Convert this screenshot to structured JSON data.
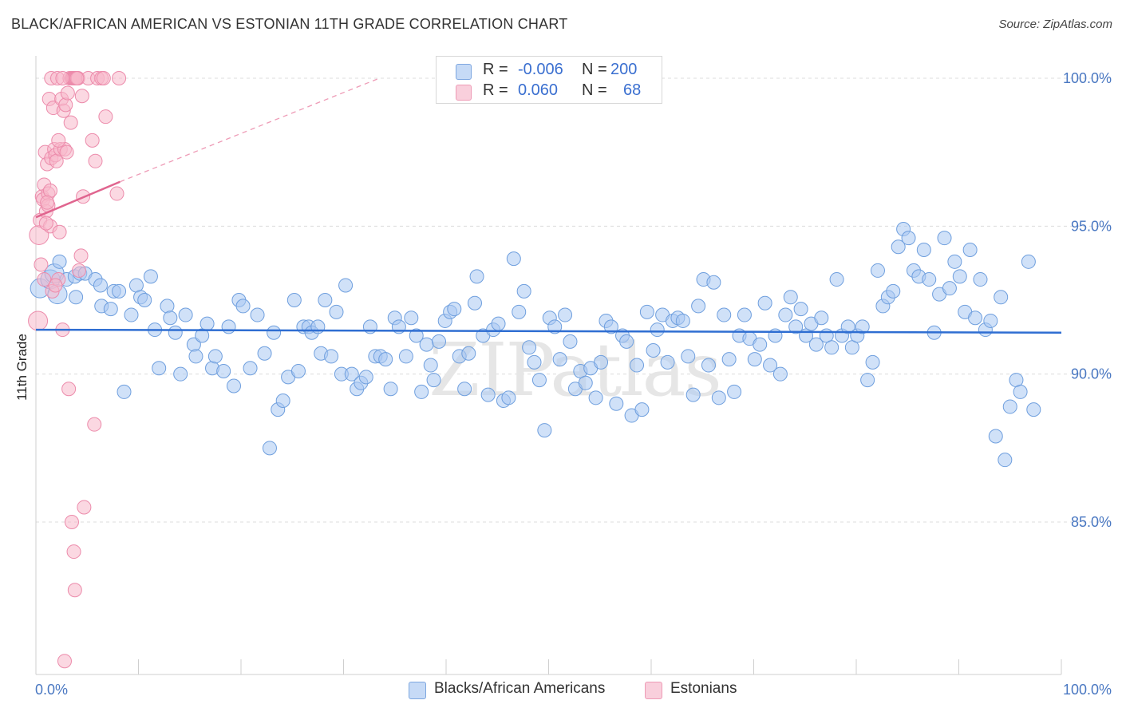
{
  "header": {
    "title": "BLACK/AFRICAN AMERICAN VS ESTONIAN 11TH GRADE CORRELATION CHART",
    "source": "Source: ZipAtlas.com"
  },
  "legend": {
    "rows": [
      {
        "r_label": "R =",
        "r_value": "-0.006",
        "n_label": "N =",
        "n_value": "200",
        "color": "#a9c8f2"
      },
      {
        "r_label": "R =",
        "r_value": "0.060",
        "n_label": "N =",
        "n_value": "68",
        "color": "#f7b8cb"
      }
    ]
  },
  "bottom_legend": [
    {
      "label": "Blacks/African Americans",
      "color": "#a9c8f2"
    },
    {
      "label": "Estonians",
      "color": "#f7b8cb"
    }
  ],
  "watermark": "ZIPatlas",
  "chart_data": {
    "type": "scatter",
    "title": "BLACK/AFRICAN AMERICAN VS ESTONIAN 11TH GRADE CORRELATION CHART",
    "xlabel": "",
    "ylabel": "11th Grade",
    "xlim": [
      0,
      100
    ],
    "ylim": [
      80,
      100.5
    ],
    "y_ticks": [
      {
        "value": 85,
        "label": "85.0%"
      },
      {
        "value": 90,
        "label": "90.0%"
      },
      {
        "value": 95,
        "label": "95.0%"
      },
      {
        "value": 100,
        "label": "100.0%"
      }
    ],
    "x_ticks": [
      {
        "value": 0,
        "label": "0.0%"
      },
      {
        "value": 100,
        "label": "100.0%"
      }
    ],
    "grid": true,
    "legend_position": "top-center",
    "series": [
      {
        "name": "Blacks/African Americans",
        "color": "#a9c8f2",
        "stroke": "#6f9fde",
        "trend": {
          "x": [
            0,
            100
          ],
          "y": [
            91.5,
            91.4
          ]
        },
        "points": [
          [
            0.4,
            92.9
          ],
          [
            1.4,
            93.2
          ],
          [
            1.8,
            93.4
          ],
          [
            2.1,
            92.7
          ],
          [
            2.3,
            93.8
          ],
          [
            3.0,
            93.2
          ],
          [
            3.8,
            93.3
          ],
          [
            3.9,
            92.6
          ],
          [
            4.3,
            93.4
          ],
          [
            4.8,
            93.4
          ],
          [
            5.8,
            93.2
          ],
          [
            6.3,
            93.0
          ],
          [
            6.4,
            92.3
          ],
          [
            7.3,
            92.2
          ],
          [
            7.6,
            92.8
          ],
          [
            8.1,
            92.8
          ],
          [
            8.6,
            89.4
          ],
          [
            9.3,
            92.0
          ],
          [
            9.8,
            93.0
          ],
          [
            10.2,
            92.6
          ],
          [
            10.6,
            92.5
          ],
          [
            11.2,
            93.3
          ],
          [
            11.6,
            91.5
          ],
          [
            12.0,
            90.2
          ],
          [
            12.8,
            92.3
          ],
          [
            13.1,
            91.9
          ],
          [
            13.6,
            91.4
          ],
          [
            14.1,
            90.0
          ],
          [
            14.6,
            92.0
          ],
          [
            15.4,
            91.0
          ],
          [
            15.6,
            90.6
          ],
          [
            16.2,
            91.3
          ],
          [
            16.7,
            91.7
          ],
          [
            17.2,
            90.2
          ],
          [
            17.5,
            90.6
          ],
          [
            18.3,
            90.1
          ],
          [
            18.8,
            91.6
          ],
          [
            19.3,
            89.6
          ],
          [
            19.8,
            92.5
          ],
          [
            20.2,
            92.3
          ],
          [
            20.9,
            90.2
          ],
          [
            21.6,
            92.0
          ],
          [
            22.3,
            90.7
          ],
          [
            22.8,
            87.5
          ],
          [
            23.2,
            91.4
          ],
          [
            23.6,
            88.8
          ],
          [
            24.1,
            89.1
          ],
          [
            24.6,
            89.9
          ],
          [
            25.2,
            92.5
          ],
          [
            25.6,
            90.1
          ],
          [
            26.1,
            91.6
          ],
          [
            26.6,
            91.6
          ],
          [
            26.9,
            91.4
          ],
          [
            27.5,
            91.6
          ],
          [
            27.8,
            90.7
          ],
          [
            28.2,
            92.5
          ],
          [
            28.8,
            90.6
          ],
          [
            29.3,
            92.1
          ],
          [
            29.8,
            90.0
          ],
          [
            30.2,
            93.0
          ],
          [
            30.8,
            90.0
          ],
          [
            31.3,
            89.5
          ],
          [
            31.7,
            89.7
          ],
          [
            32.2,
            89.9
          ],
          [
            32.6,
            91.6
          ],
          [
            33.1,
            90.6
          ],
          [
            33.6,
            90.6
          ],
          [
            34.1,
            90.5
          ],
          [
            34.6,
            89.5
          ],
          [
            35.0,
            91.9
          ],
          [
            35.4,
            91.6
          ],
          [
            36.1,
            90.6
          ],
          [
            36.6,
            91.9
          ],
          [
            37.1,
            91.3
          ],
          [
            37.6,
            89.4
          ],
          [
            38.1,
            91.0
          ],
          [
            38.5,
            90.3
          ],
          [
            38.8,
            89.8
          ],
          [
            39.3,
            91.1
          ],
          [
            39.9,
            91.8
          ],
          [
            40.4,
            92.1
          ],
          [
            40.8,
            92.2
          ],
          [
            41.3,
            90.6
          ],
          [
            41.8,
            89.5
          ],
          [
            42.2,
            90.7
          ],
          [
            42.8,
            92.4
          ],
          [
            43.0,
            93.3
          ],
          [
            43.6,
            91.3
          ],
          [
            44.1,
            89.3
          ],
          [
            44.6,
            91.5
          ],
          [
            45.1,
            91.7
          ],
          [
            45.6,
            89.1
          ],
          [
            46.1,
            89.2
          ],
          [
            46.6,
            93.9
          ],
          [
            47.1,
            92.1
          ],
          [
            47.6,
            92.8
          ],
          [
            48.1,
            90.9
          ],
          [
            48.6,
            90.4
          ],
          [
            49.1,
            89.8
          ],
          [
            49.6,
            88.1
          ],
          [
            50.1,
            91.9
          ],
          [
            50.6,
            91.6
          ],
          [
            51.1,
            90.5
          ],
          [
            51.6,
            92.0
          ],
          [
            52.1,
            91.1
          ],
          [
            52.6,
            89.5
          ],
          [
            53.1,
            90.1
          ],
          [
            53.6,
            89.7
          ],
          [
            54.1,
            90.2
          ],
          [
            54.6,
            89.2
          ],
          [
            55.1,
            90.4
          ],
          [
            55.6,
            91.8
          ],
          [
            56.1,
            91.6
          ],
          [
            56.6,
            89.0
          ],
          [
            57.2,
            91.3
          ],
          [
            57.6,
            91.1
          ],
          [
            58.1,
            88.6
          ],
          [
            58.6,
            90.3
          ],
          [
            59.1,
            88.8
          ],
          [
            59.6,
            92.1
          ],
          [
            60.2,
            90.8
          ],
          [
            60.6,
            91.5
          ],
          [
            61.1,
            92.0
          ],
          [
            61.6,
            90.4
          ],
          [
            62.1,
            91.8
          ],
          [
            62.6,
            91.9
          ],
          [
            63.1,
            91.8
          ],
          [
            63.6,
            90.6
          ],
          [
            64.1,
            89.3
          ],
          [
            64.6,
            92.3
          ],
          [
            65.1,
            93.2
          ],
          [
            65.6,
            90.3
          ],
          [
            66.1,
            93.1
          ],
          [
            66.6,
            89.2
          ],
          [
            67.1,
            92.0
          ],
          [
            67.6,
            90.5
          ],
          [
            68.1,
            89.4
          ],
          [
            68.6,
            91.3
          ],
          [
            69.1,
            92.0
          ],
          [
            69.6,
            91.2
          ],
          [
            70.1,
            90.5
          ],
          [
            70.6,
            91.0
          ],
          [
            71.1,
            92.4
          ],
          [
            71.6,
            90.3
          ],
          [
            72.1,
            91.3
          ],
          [
            72.6,
            90.0
          ],
          [
            73.1,
            92.0
          ],
          [
            73.6,
            92.6
          ],
          [
            74.1,
            91.6
          ],
          [
            74.6,
            92.2
          ],
          [
            75.1,
            91.3
          ],
          [
            75.6,
            91.7
          ],
          [
            76.1,
            91.0
          ],
          [
            76.6,
            91.9
          ],
          [
            77.1,
            91.3
          ],
          [
            77.6,
            90.9
          ],
          [
            78.1,
            93.2
          ],
          [
            78.6,
            91.3
          ],
          [
            79.2,
            91.6
          ],
          [
            79.6,
            90.9
          ],
          [
            80.1,
            91.3
          ],
          [
            80.6,
            91.6
          ],
          [
            81.1,
            89.8
          ],
          [
            81.6,
            90.4
          ],
          [
            82.1,
            93.5
          ],
          [
            82.6,
            92.3
          ],
          [
            83.1,
            92.6
          ],
          [
            83.6,
            92.8
          ],
          [
            84.1,
            94.3
          ],
          [
            84.6,
            94.9
          ],
          [
            85.1,
            94.6
          ],
          [
            85.6,
            93.5
          ],
          [
            86.1,
            93.3
          ],
          [
            86.6,
            94.2
          ],
          [
            87.1,
            93.2
          ],
          [
            87.6,
            91.4
          ],
          [
            88.1,
            92.7
          ],
          [
            88.6,
            94.6
          ],
          [
            89.1,
            92.9
          ],
          [
            89.6,
            93.8
          ],
          [
            90.1,
            93.3
          ],
          [
            90.6,
            92.1
          ],
          [
            91.1,
            94.2
          ],
          [
            91.6,
            91.9
          ],
          [
            92.1,
            93.2
          ],
          [
            92.6,
            91.5
          ],
          [
            93.1,
            91.8
          ],
          [
            93.6,
            87.9
          ],
          [
            94.1,
            92.6
          ],
          [
            94.5,
            87.1
          ],
          [
            95.0,
            88.9
          ],
          [
            95.6,
            89.8
          ],
          [
            96.0,
            89.4
          ],
          [
            96.8,
            93.8
          ],
          [
            97.3,
            88.8
          ]
        ]
      },
      {
        "name": "Estonians",
        "color": "#f7b8cb",
        "stroke": "#ec8bab",
        "trend": {
          "x": [
            0,
            8.2
          ],
          "y": [
            95.3,
            96.5
          ],
          "dashed_to": {
            "x": 33.5,
            "y": 100.0
          }
        },
        "points": [
          [
            0.2,
            91.8
          ],
          [
            0.3,
            94.7
          ],
          [
            0.4,
            95.2
          ],
          [
            0.5,
            93.7
          ],
          [
            0.6,
            96.0
          ],
          [
            0.7,
            95.9
          ],
          [
            0.8,
            96.4
          ],
          [
            0.9,
            97.5
          ],
          [
            1.0,
            95.5
          ],
          [
            1.1,
            97.1
          ],
          [
            1.2,
            96.1
          ],
          [
            1.2,
            95.7
          ],
          [
            1.3,
            99.3
          ],
          [
            1.4,
            95.0
          ],
          [
            1.5,
            100.0
          ],
          [
            1.5,
            97.3
          ],
          [
            1.6,
            92.8
          ],
          [
            1.7,
            99.0
          ],
          [
            1.8,
            97.6
          ],
          [
            1.9,
            97.4
          ],
          [
            2.0,
            97.2
          ],
          [
            2.1,
            100.0
          ],
          [
            2.2,
            93.2
          ],
          [
            2.3,
            94.8
          ],
          [
            2.4,
            97.6
          ],
          [
            2.5,
            99.3
          ],
          [
            2.6,
            91.5
          ],
          [
            2.7,
            98.9
          ],
          [
            2.8,
            97.6
          ],
          [
            2.9,
            99.1
          ],
          [
            3.0,
            97.5
          ],
          [
            3.1,
            99.5
          ],
          [
            3.2,
            89.5
          ],
          [
            3.3,
            100.0
          ],
          [
            3.4,
            98.5
          ],
          [
            3.5,
            100.0
          ],
          [
            3.6,
            100.0
          ],
          [
            3.7,
            100.0
          ],
          [
            3.8,
            100.0
          ],
          [
            3.9,
            100.0
          ],
          [
            4.1,
            100.0
          ],
          [
            4.2,
            93.5
          ],
          [
            4.4,
            94.0
          ],
          [
            4.5,
            99.4
          ],
          [
            4.6,
            96.0
          ],
          [
            5.1,
            100.0
          ],
          [
            5.5,
            97.9
          ],
          [
            5.8,
            97.2
          ],
          [
            6.0,
            100.0
          ],
          [
            6.4,
            100.0
          ],
          [
            6.6,
            100.0
          ],
          [
            6.8,
            98.7
          ],
          [
            7.9,
            96.1
          ],
          [
            8.1,
            100.0
          ],
          [
            5.7,
            88.3
          ],
          [
            2.6,
            100.0
          ],
          [
            4.0,
            100.0
          ],
          [
            3.5,
            85.0
          ],
          [
            3.7,
            84.0
          ],
          [
            3.8,
            82.7
          ],
          [
            4.7,
            85.5
          ],
          [
            2.8,
            80.3
          ],
          [
            1.0,
            95.1
          ],
          [
            1.9,
            93.0
          ],
          [
            1.4,
            96.2
          ],
          [
            2.2,
            97.9
          ],
          [
            1.1,
            95.8
          ],
          [
            0.8,
            93.2
          ]
        ]
      }
    ]
  }
}
